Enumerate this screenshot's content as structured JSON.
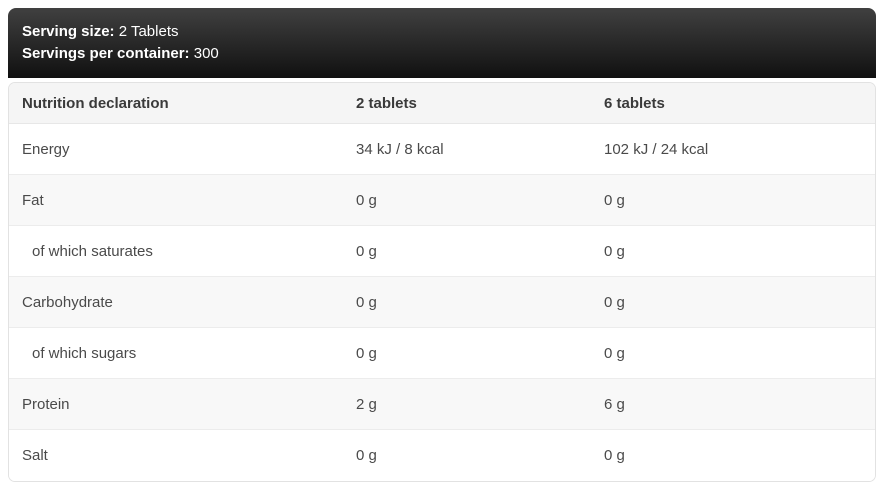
{
  "serving_info": {
    "serving_size_label": "Serving size:",
    "serving_size_value": "2 Tablets",
    "servings_per_container_label": "Servings per container:",
    "servings_per_container_value": "300"
  },
  "table": {
    "columns": [
      "Nutrition declaration",
      "2 tablets",
      "6 tablets"
    ],
    "rows": [
      {
        "label": "Energy",
        "indent": false,
        "values": [
          "34 kJ / 8 kcal",
          "102 kJ / 24 kcal"
        ]
      },
      {
        "label": "Fat",
        "indent": false,
        "values": [
          "0 g",
          "0 g"
        ]
      },
      {
        "label": "of which saturates",
        "indent": true,
        "values": [
          "0 g",
          "0 g"
        ]
      },
      {
        "label": "Carbohydrate",
        "indent": false,
        "values": [
          "0 g",
          "0 g"
        ]
      },
      {
        "label": "of which sugars",
        "indent": true,
        "values": [
          "0 g",
          "0 g"
        ]
      },
      {
        "label": "Protein",
        "indent": false,
        "values": [
          "2 g",
          "6 g"
        ]
      },
      {
        "label": "Salt",
        "indent": false,
        "values": [
          "0 g",
          "0 g"
        ]
      }
    ]
  },
  "colors": {
    "header_gradient_top": "#404040",
    "header_gradient_bottom": "#101010",
    "header_text": "#ffffff",
    "table_header_bg": "#f5f5f5",
    "row_alt_bg": "#f8f8f8",
    "row_divider": "#ececec",
    "table_border": "#e2e2e2",
    "body_text": "#4a4a4a",
    "bottom_strip": "#e4e4e4"
  }
}
